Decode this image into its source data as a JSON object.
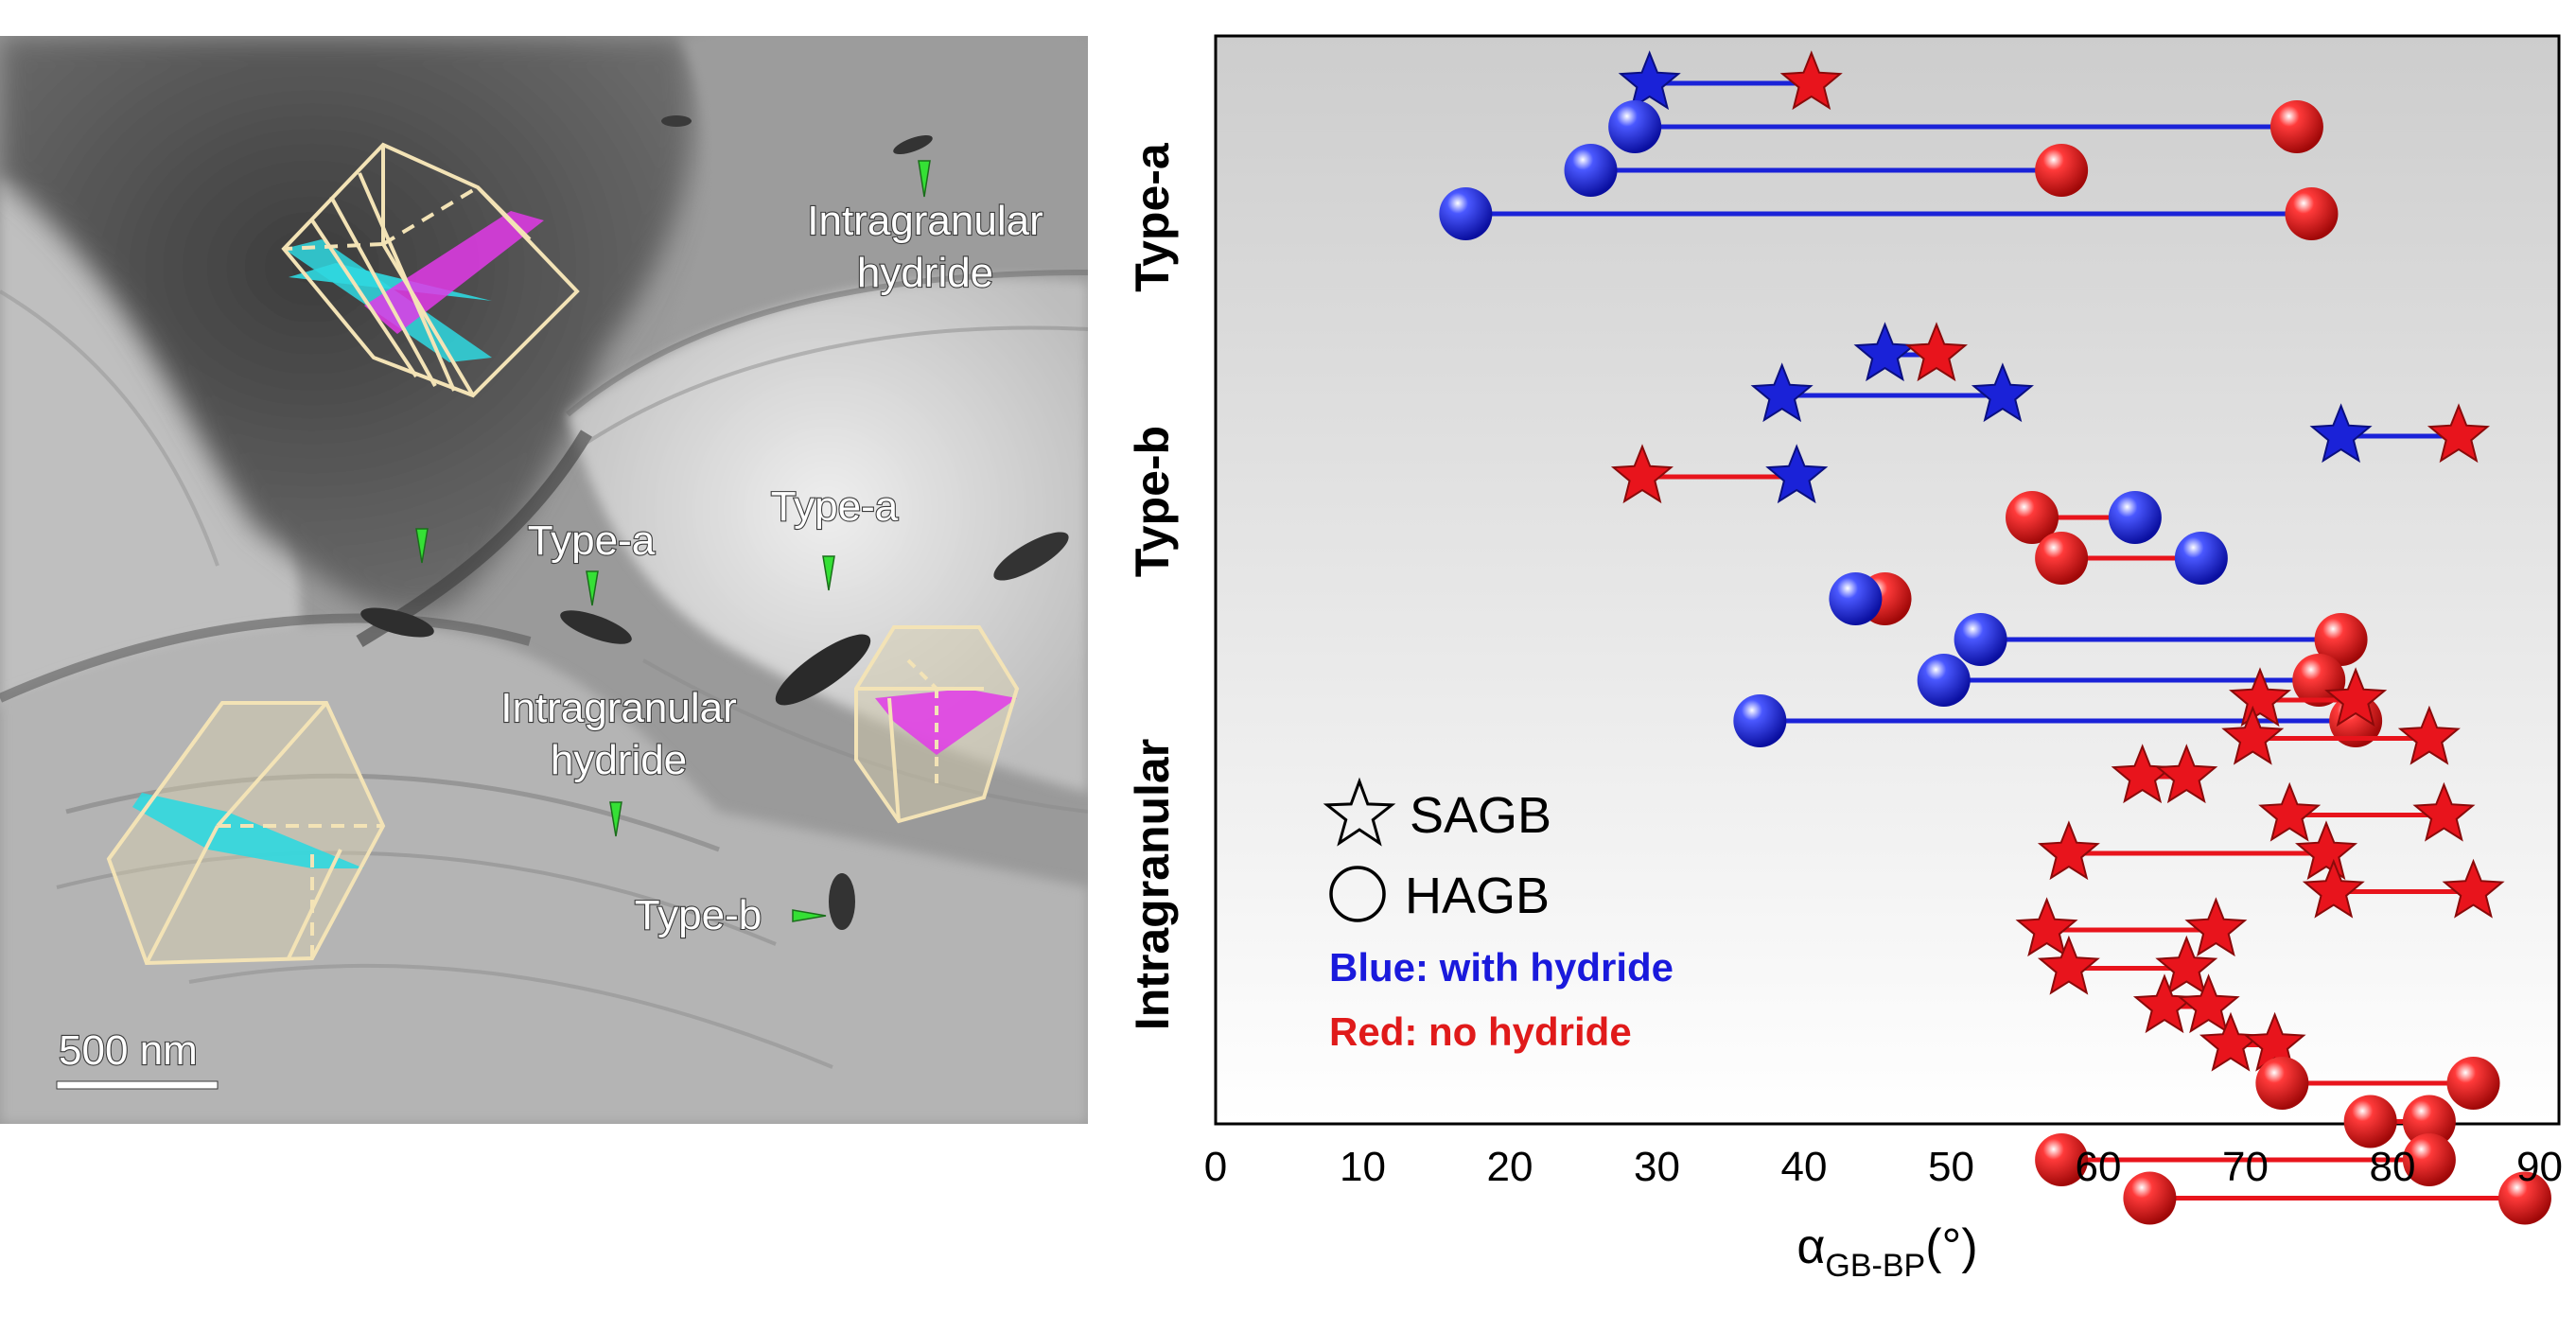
{
  "tem_image": {
    "labels": {
      "intragranular_top": [
        "Intragranular",
        "hydride"
      ],
      "type_a_left": "Type-a",
      "type_a_right": "Type-a",
      "intragranular_mid": [
        "Intragranular",
        "hydride"
      ],
      "type_b": "Type-b"
    },
    "scale_bar": "500 nm",
    "colors": {
      "marker": "#35e035",
      "cell_outline": "#f3e3b6",
      "basal_plane": "#e23ae8",
      "grain_boundary_plane": "#2fd8e0"
    }
  },
  "chart_data": {
    "type": "scatter",
    "xlabel": "α",
    "xlabel_subscript": "GB-BP",
    "xlabel_unit": "(°)",
    "xlim": [
      0,
      92
    ],
    "xticks": [
      0,
      10,
      20,
      30,
      40,
      50,
      60,
      70,
      80,
      90
    ],
    "yticks_hidden": true,
    "row_labels": [
      "Type-a",
      "Type-b",
      "Intragranular"
    ],
    "legend": {
      "shapes": [
        {
          "symbol": "star",
          "label": "SAGB"
        },
        {
          "symbol": "circle",
          "label": "HAGB"
        }
      ],
      "notes": [
        {
          "text": "Blue: with hydride",
          "color": "#1a1adc"
        },
        {
          "text": "Red: no hydride",
          "color": "#e01a1a"
        }
      ]
    },
    "colors": {
      "with_hydride": "#1a22d8",
      "no_hydride": "#e8141c",
      "background_top": "#cdcdcd",
      "background_bottom": "#ffffff"
    },
    "groups": [
      {
        "name": "Type-a",
        "pairs": [
          {
            "boundary": "SAGB",
            "first": {
              "x": 29.5,
              "hydride": true
            },
            "second": {
              "x": 40.5,
              "hydride": false
            }
          },
          {
            "boundary": "HAGB",
            "first": {
              "x": 28.5,
              "hydride": true
            },
            "second": {
              "x": 73.5,
              "hydride": false
            }
          },
          {
            "boundary": "HAGB",
            "first": {
              "x": 25.5,
              "hydride": true
            },
            "second": {
              "x": 57.5,
              "hydride": false
            }
          },
          {
            "boundary": "HAGB",
            "first": {
              "x": 17.0,
              "hydride": true
            },
            "second": {
              "x": 74.5,
              "hydride": false
            }
          }
        ]
      },
      {
        "name": "Type-b",
        "pairs": [
          {
            "boundary": "SAGB",
            "first": {
              "x": 45.5,
              "hydride": true
            },
            "second": {
              "x": 49.0,
              "hydride": false
            }
          },
          {
            "boundary": "SAGB",
            "first": {
              "x": 38.5,
              "hydride": true
            },
            "second": {
              "x": 53.5,
              "hydride": true
            }
          },
          {
            "boundary": "SAGB",
            "first": {
              "x": 76.5,
              "hydride": true
            },
            "second": {
              "x": 84.5,
              "hydride": false
            }
          },
          {
            "boundary": "SAGB",
            "first": {
              "x": 29.0,
              "hydride": false
            },
            "second": {
              "x": 39.5,
              "hydride": true
            }
          },
          {
            "boundary": "HAGB",
            "first": {
              "x": 55.5,
              "hydride": false
            },
            "second": {
              "x": 62.5,
              "hydride": true
            }
          },
          {
            "boundary": "HAGB",
            "first": {
              "x": 57.5,
              "hydride": false
            },
            "second": {
              "x": 67.0,
              "hydride": true
            }
          },
          {
            "boundary": "HAGB",
            "first": {
              "x": 45.5,
              "hydride": false
            },
            "second": {
              "x": 43.5,
              "hydride": true
            }
          },
          {
            "boundary": "HAGB",
            "first": {
              "x": 52.0,
              "hydride": true
            },
            "second": {
              "x": 76.5,
              "hydride": false
            }
          },
          {
            "boundary": "HAGB",
            "first": {
              "x": 49.5,
              "hydride": true
            },
            "second": {
              "x": 75.0,
              "hydride": false
            }
          },
          {
            "boundary": "HAGB",
            "first": {
              "x": 37.0,
              "hydride": true
            },
            "second": {
              "x": 77.5,
              "hydride": false
            }
          }
        ]
      },
      {
        "name": "Intragranular",
        "pairs": [
          {
            "boundary": "SAGB",
            "first": {
              "x": 71.0,
              "hydride": false
            },
            "second": {
              "x": 77.5,
              "hydride": false
            }
          },
          {
            "boundary": "SAGB",
            "first": {
              "x": 70.5,
              "hydride": false
            },
            "second": {
              "x": 82.5,
              "hydride": false
            }
          },
          {
            "boundary": "SAGB",
            "first": {
              "x": 63.0,
              "hydride": false
            },
            "second": {
              "x": 66.0,
              "hydride": false
            }
          },
          {
            "boundary": "SAGB",
            "first": {
              "x": 73.0,
              "hydride": false
            },
            "second": {
              "x": 83.5,
              "hydride": false
            }
          },
          {
            "boundary": "SAGB",
            "first": {
              "x": 58.0,
              "hydride": false
            },
            "second": {
              "x": 75.5,
              "hydride": false
            }
          },
          {
            "boundary": "SAGB",
            "first": {
              "x": 76.0,
              "hydride": false
            },
            "second": {
              "x": 85.5,
              "hydride": false
            }
          },
          {
            "boundary": "SAGB",
            "first": {
              "x": 56.5,
              "hydride": false
            },
            "second": {
              "x": 68.0,
              "hydride": false
            }
          },
          {
            "boundary": "SAGB",
            "first": {
              "x": 58.0,
              "hydride": false
            },
            "second": {
              "x": 66.0,
              "hydride": false
            }
          },
          {
            "boundary": "SAGB",
            "first": {
              "x": 64.5,
              "hydride": false
            },
            "second": {
              "x": 67.5,
              "hydride": false
            }
          },
          {
            "boundary": "SAGB",
            "first": {
              "x": 69.0,
              "hydride": false
            },
            "second": {
              "x": 72.0,
              "hydride": false
            }
          },
          {
            "boundary": "HAGB",
            "first": {
              "x": 72.5,
              "hydride": false
            },
            "second": {
              "x": 85.5,
              "hydride": false
            }
          },
          {
            "boundary": "HAGB",
            "first": {
              "x": 78.5,
              "hydride": false
            },
            "second": {
              "x": 82.5,
              "hydride": false
            }
          },
          {
            "boundary": "HAGB",
            "first": {
              "x": 57.5,
              "hydride": false
            },
            "second": {
              "x": 82.5,
              "hydride": false
            }
          },
          {
            "boundary": "HAGB",
            "first": {
              "x": 63.5,
              "hydride": false
            },
            "second": {
              "x": 89.0,
              "hydride": false
            }
          }
        ]
      }
    ]
  }
}
